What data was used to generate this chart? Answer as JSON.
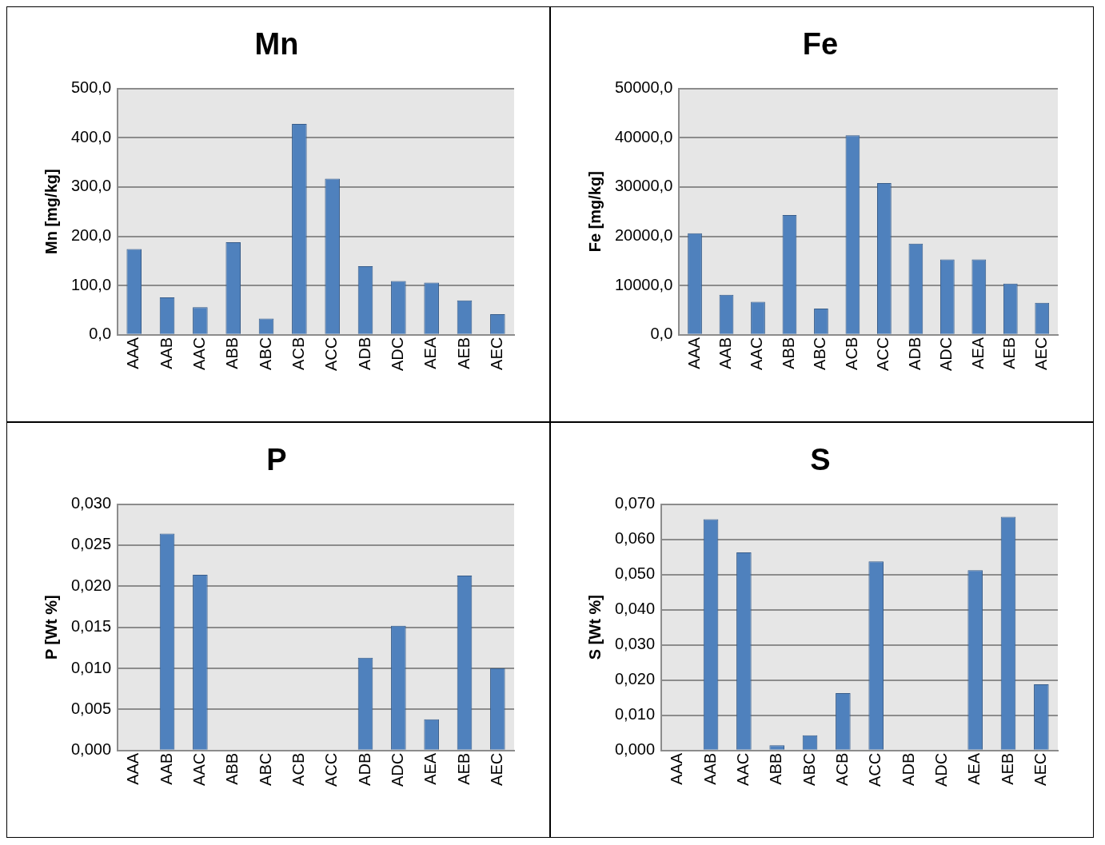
{
  "chart_data": [
    {
      "type": "bar",
      "title": "Mn",
      "ylabel": "Mn [mg/kg]",
      "categories": [
        "AAA",
        "AAB",
        "AAC",
        "ABB",
        "ABC",
        "ACB",
        "ACC",
        "ADB",
        "ADC",
        "AEA",
        "AEB",
        "AEC"
      ],
      "values": [
        174,
        76,
        56,
        188,
        33,
        428,
        317,
        139,
        109,
        106,
        70,
        42
      ],
      "color": "#4f81bd",
      "ylim": [
        0,
        500
      ],
      "yticks": [
        {
          "value": 0,
          "label": "0,0"
        },
        {
          "value": 100,
          "label": "100,0"
        },
        {
          "value": 200,
          "label": "200,0"
        },
        {
          "value": 300,
          "label": "300,0"
        },
        {
          "value": 400,
          "label": "400,0"
        },
        {
          "value": 500,
          "label": "500,0"
        }
      ],
      "grid": "y",
      "legend": false
    },
    {
      "type": "bar",
      "title": "Fe",
      "ylabel": "Fe [mg/kg]",
      "categories": [
        "AAA",
        "AAB",
        "AAC",
        "ABB",
        "ABC",
        "ACB",
        "ACC",
        "ADB",
        "ADC",
        "AEA",
        "AEB",
        "AEC"
      ],
      "values": [
        20600,
        8100,
        6700,
        24300,
        5300,
        40500,
        30800,
        18500,
        15300,
        15300,
        10400,
        6500
      ],
      "color": "#4f81bd",
      "ylim": [
        0,
        50000
      ],
      "yticks": [
        {
          "value": 0,
          "label": "0,0"
        },
        {
          "value": 10000,
          "label": "10000,0"
        },
        {
          "value": 20000,
          "label": "20000,0"
        },
        {
          "value": 30000,
          "label": "30000,0"
        },
        {
          "value": 40000,
          "label": "40000,0"
        },
        {
          "value": 50000,
          "label": "50000,0"
        }
      ],
      "grid": "y",
      "legend": false
    },
    {
      "type": "bar",
      "title": "P",
      "ylabel": "P [Wt %]",
      "categories": [
        "AAA",
        "AAB",
        "AAC",
        "ABB",
        "ABC",
        "ACB",
        "ACC",
        "ADB",
        "ADC",
        "AEA",
        "AEB",
        "AEC"
      ],
      "values": [
        null,
        0.0264,
        0.0214,
        null,
        null,
        null,
        null,
        0.0113,
        0.0152,
        0.0038,
        0.0213,
        0.01
      ],
      "color": "#4f81bd",
      "ylim": [
        0,
        0.03
      ],
      "yticks": [
        {
          "value": 0,
          "label": "0,000"
        },
        {
          "value": 0.005,
          "label": "0,005"
        },
        {
          "value": 0.01,
          "label": "0,010"
        },
        {
          "value": 0.015,
          "label": "0,015"
        },
        {
          "value": 0.02,
          "label": "0,020"
        },
        {
          "value": 0.025,
          "label": "0,025"
        },
        {
          "value": 0.03,
          "label": "0,030"
        }
      ],
      "grid": "y",
      "legend": false
    },
    {
      "type": "bar",
      "title": "S",
      "ylabel": "S [Wt %]",
      "categories": [
        "AAA",
        "AAB",
        "AAC",
        "ABB",
        "ABC",
        "ACB",
        "ACC",
        "ADB",
        "ADC",
        "AEA",
        "AEB",
        "AEC"
      ],
      "values": [
        null,
        0.0657,
        0.0563,
        0.0015,
        0.0043,
        0.0163,
        0.0537,
        null,
        null,
        0.0512,
        0.0664,
        0.0188
      ],
      "color": "#4f81bd",
      "ylim": [
        0,
        0.07
      ],
      "yticks": [
        {
          "value": 0,
          "label": "0,000"
        },
        {
          "value": 0.01,
          "label": "0,010"
        },
        {
          "value": 0.02,
          "label": "0,020"
        },
        {
          "value": 0.03,
          "label": "0,030"
        },
        {
          "value": 0.04,
          "label": "0,040"
        },
        {
          "value": 0.05,
          "label": "0,050"
        },
        {
          "value": 0.06,
          "label": "0,060"
        },
        {
          "value": 0.07,
          "label": "0,070"
        }
      ],
      "grid": "y",
      "legend": false
    }
  ]
}
